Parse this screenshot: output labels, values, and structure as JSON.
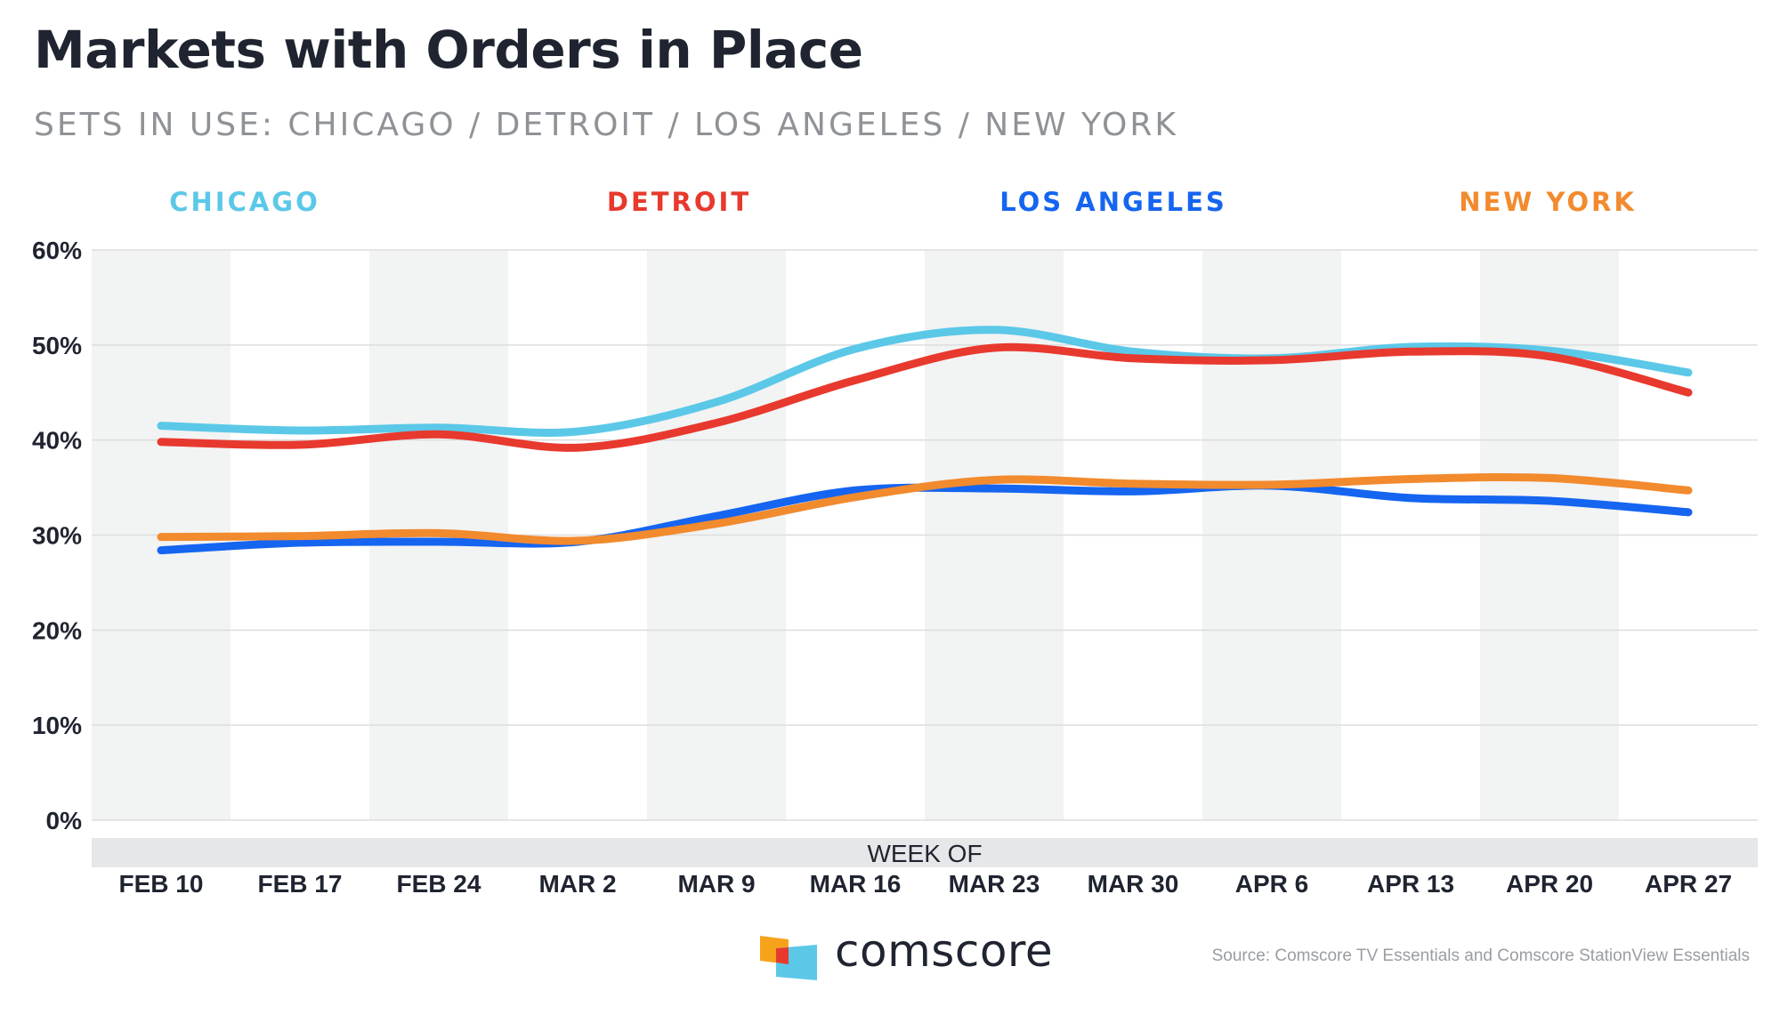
{
  "header": {
    "title": "Markets with Orders in Place",
    "subtitle": "SETS IN USE: CHICAGO / DETROIT / LOS ANGELES / NEW YORK"
  },
  "chart_data": {
    "type": "line",
    "title": "Markets with Orders in Place",
    "subtitle": "SETS IN USE: CHICAGO / DETROIT / LOS ANGELES / NEW YORK",
    "xlabel": "WEEK OF",
    "ylabel": "",
    "categories": [
      "FEB 10",
      "FEB 17",
      "FEB 24",
      "MAR 2",
      "MAR 9",
      "MAR 16",
      "MAR 23",
      "MAR 30",
      "APR 6",
      "APR 13",
      "APR 20",
      "APR 27"
    ],
    "ylim": [
      0,
      60
    ],
    "yticks": [
      0,
      10,
      20,
      30,
      40,
      50,
      60
    ],
    "ytick_labels": [
      "0%",
      "10%",
      "20%",
      "30%",
      "40%",
      "50%",
      "60%"
    ],
    "grid": true,
    "legend_position": "top",
    "series": [
      {
        "name": "CHICAGO",
        "color": "#5bc8e8",
        "values": [
          41.5,
          41.0,
          41.3,
          40.9,
          44.0,
          49.6,
          51.6,
          49.3,
          48.6,
          49.8,
          49.4,
          47.1
        ]
      },
      {
        "name": "DETROIT",
        "color": "#e8392e",
        "values": [
          39.8,
          39.5,
          40.6,
          39.2,
          41.8,
          46.3,
          49.7,
          48.6,
          48.4,
          49.3,
          48.8,
          45.0
        ]
      },
      {
        "name": "LOS ANGELES",
        "color": "#1565f0",
        "values": [
          28.4,
          29.2,
          29.3,
          29.3,
          32.0,
          34.7,
          34.9,
          34.6,
          35.2,
          33.9,
          33.6,
          32.4
        ]
      },
      {
        "name": "NEW YORK",
        "color": "#f28a2e",
        "values": [
          29.8,
          29.9,
          30.2,
          29.4,
          31.2,
          34.0,
          35.8,
          35.4,
          35.3,
          35.9,
          36.0,
          34.7
        ]
      }
    ]
  },
  "footer": {
    "brand": "comscore",
    "source": "Source: Comscore TV Essentials and Comscore StationView Essentials",
    "logo_colors": [
      "#f7a21b",
      "#e8392e",
      "#5bc8e8"
    ]
  }
}
